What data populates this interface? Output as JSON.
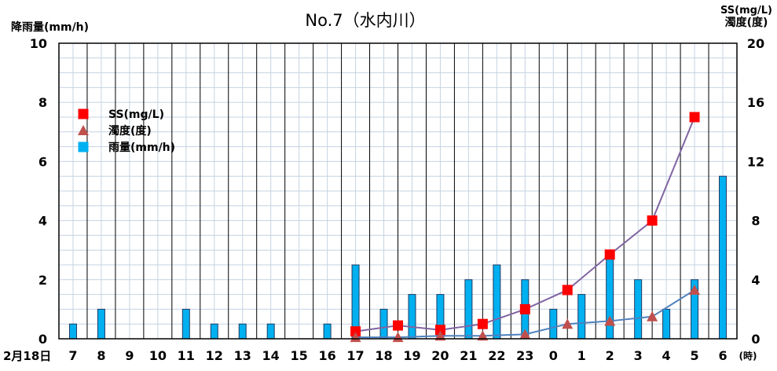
{
  "chart_data": {
    "type": "bar+line+scatter",
    "title": "No.7（水内川）",
    "left_axis": {
      "label": "降雨量(mm/h)",
      "ylim": [
        0,
        10
      ],
      "ticks": [
        "0",
        "2",
        "4",
        "6",
        "8",
        "10"
      ]
    },
    "right_axis": {
      "label_line1": "SS(mg/L)",
      "label_line2": "濁度(度)",
      "ylim": [
        0,
        20
      ],
      "ticks": [
        "0",
        "4",
        "8",
        "12",
        "16",
        "20"
      ]
    },
    "x_axis": {
      "date_label": "2月18日",
      "unit_label": "(時)",
      "categories": [
        "7",
        "8",
        "9",
        "10",
        "11",
        "12",
        "13",
        "14",
        "15",
        "16",
        "17",
        "18",
        "19",
        "20",
        "21",
        "22",
        "23",
        "0",
        "1",
        "2",
        "3",
        "4",
        "5",
        "6"
      ]
    },
    "legend": {
      "placement": "top-left",
      "items": [
        {
          "label": "SS(mg/L)",
          "marker": "square",
          "color": "#ff0000"
        },
        {
          "label": "濁度(度)",
          "marker": "triangle",
          "color": "#c0504d"
        },
        {
          "label": "雨量(mm/h)",
          "marker": "square",
          "color": "#00b0f0"
        }
      ]
    },
    "series": [
      {
        "name": "雨量(mm/h)",
        "kind": "bar",
        "axis": "left",
        "color": "#00b0f0",
        "x": [
          "7:00",
          "8:00",
          "9:00",
          "10:00",
          "11:00",
          "12:00",
          "13:00",
          "14:00",
          "15:00",
          "16:00",
          "17:00",
          "18:00",
          "19:00",
          "20:00",
          "21:00",
          "22:00",
          "23:00",
          "0:00",
          "1:00",
          "2:00",
          "3:00",
          "4:00",
          "5:00",
          "6:00"
        ],
        "values": [
          0.5,
          1.0,
          0,
          0,
          1.0,
          0.5,
          0.5,
          0.5,
          0,
          0.5,
          2.5,
          1.0,
          1.5,
          1.5,
          2.0,
          2.5,
          2.0,
          1.0,
          1.5,
          3.0,
          2.0,
          1.0,
          2.0,
          5.5
        ]
      },
      {
        "name": "SS(mg/L)",
        "kind": "line+marker",
        "axis": "right",
        "marker": "square",
        "marker_color": "#ff0000",
        "line_color": "#8064a2",
        "x": [
          "17:00",
          "18:30",
          "20:00",
          "21:30",
          "23:00",
          "0:30",
          "2:00",
          "3:30",
          "5:00"
        ],
        "values": [
          0.5,
          0.9,
          0.6,
          1.0,
          2.0,
          3.3,
          5.7,
          8.0,
          15.0
        ]
      },
      {
        "name": "濁度(度)",
        "kind": "line+marker",
        "axis": "right",
        "marker": "triangle",
        "marker_color": "#c0504d",
        "line_color": "#4f81bd",
        "x": [
          "17:00",
          "18:30",
          "20:00",
          "21:30",
          "23:00",
          "0:30",
          "2:00",
          "3:30",
          "5:00"
        ],
        "values": [
          0.1,
          0.1,
          0.2,
          0.2,
          0.3,
          1.0,
          1.2,
          1.5,
          3.3
        ]
      }
    ]
  }
}
